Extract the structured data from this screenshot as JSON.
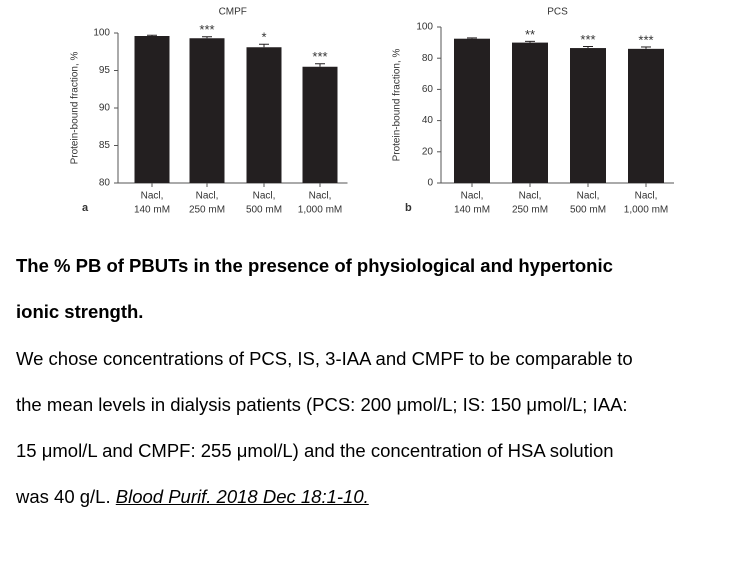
{
  "chart_data": [
    {
      "type": "bar",
      "title": "CMPF",
      "panel": "a",
      "y_label": "Protein-bound fraction, %",
      "categories": [
        [
          "Nacl,",
          "140 mM"
        ],
        [
          "Nacl,",
          "250 mM"
        ],
        [
          "Nacl,",
          "500 mM"
        ],
        [
          "Nacl,",
          "1,000 mM"
        ]
      ],
      "values": [
        99.6,
        99.3,
        98.1,
        95.5
      ],
      "errors": [
        0.1,
        0.2,
        0.4,
        0.4
      ],
      "significance": [
        null,
        "***",
        "*",
        "***"
      ],
      "color": "#231f20",
      "ylim": [
        80,
        100
      ],
      "yticks": [
        80,
        85,
        90,
        95,
        100
      ]
    },
    {
      "type": "bar",
      "title": "PCS",
      "panel": "b",
      "y_label": "Protein-bound fraction, %",
      "categories": [
        [
          "Nacl,",
          "140 mM"
        ],
        [
          "Nacl,",
          "250 mM"
        ],
        [
          "Nacl,",
          "500 mM"
        ],
        [
          "Nacl,",
          "1,000 mM"
        ]
      ],
      "values": [
        92.5,
        90,
        86.5,
        86
      ],
      "errors": [
        0.5,
        0.8,
        1.0,
        1.2
      ],
      "significance": [
        null,
        "**",
        "***",
        "***"
      ],
      "color": "#231f20",
      "ylim": [
        0,
        100
      ],
      "yticks": [
        0,
        20,
        40,
        60,
        80,
        100
      ]
    }
  ],
  "caption": {
    "title_lines": [
      "The % PB of PBUTs in the presence of physiological and hypertonic",
      "ionic strength."
    ],
    "body_lines": [
      "We chose concentrations of PCS, IS, 3-IAA and CMPF to be comparable to",
      "the mean levels in dialysis patients (PCS: 200 μmol/L; IS: 150 μmol/L; IAA:",
      "15 μmol/L and CMPF: 255 μmol/L) and the concentration of HSA solution",
      "was 40 g/L."
    ],
    "citation": "Blood Purif. 2018 Dec 18:1-10."
  }
}
